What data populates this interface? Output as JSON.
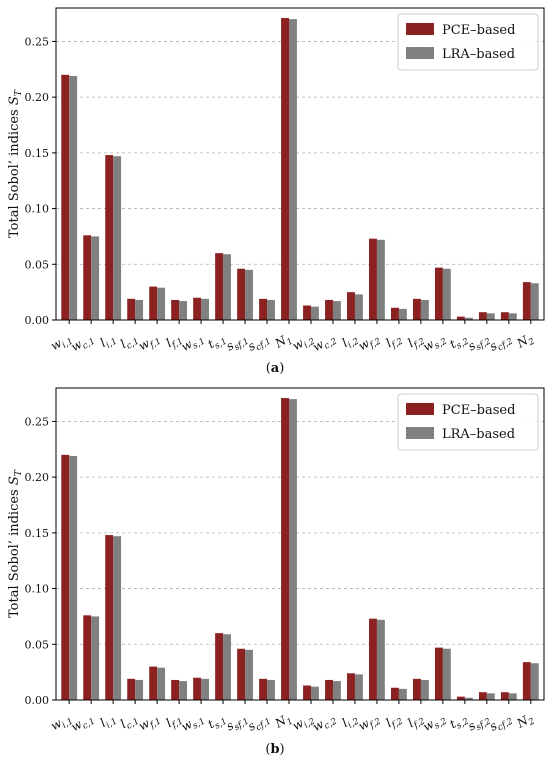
{
  "colors": {
    "pce": "#8b2221",
    "lra": "#808080",
    "grid": "#b0b0b0"
  },
  "chart_data": [
    {
      "type": "bar",
      "caption_letter": "a",
      "ylabel": "Total Sobol’ indices S_T",
      "ylim": [
        0,
        0.28
      ],
      "yticks": [
        "0.00",
        "0.05",
        "0.10",
        "0.15",
        "0.20",
        "0.25"
      ],
      "ytick_values": [
        0,
        0.05,
        0.1,
        0.15,
        0.2,
        0.25
      ],
      "grid": "y-dashed",
      "legend_position": "top-right",
      "categories": [
        "w_{i,1}",
        "w_{c,1}",
        "l_{i,1}",
        "l_{c,1}",
        "w_{f,1}",
        "l_{f,1}",
        "w_{s,1}",
        "t_{s,1}",
        "s_{sf,1}",
        "s_{cf,1}",
        "N_1",
        "w_{i,2}",
        "w_{c,2}",
        "l_{i,2}",
        "w_{f,2}",
        "l_{f,2}",
        "l_{f,2}",
        "w_{s,2}",
        "t_{s,2}",
        "s_{sf,2}",
        "s_{cf,2}",
        "N_2"
      ],
      "series": [
        {
          "name": "PCE–based",
          "values": [
            0.22,
            0.076,
            0.148,
            0.019,
            0.03,
            0.018,
            0.02,
            0.06,
            0.046,
            0.019,
            0.271,
            0.013,
            0.018,
            0.025,
            0.073,
            0.011,
            0.019,
            0.047,
            0.003,
            0.007,
            0.007,
            0.034
          ]
        },
        {
          "name": "LRA–based",
          "values": [
            0.219,
            0.075,
            0.147,
            0.018,
            0.029,
            0.017,
            0.019,
            0.059,
            0.045,
            0.018,
            0.27,
            0.012,
            0.017,
            0.023,
            0.072,
            0.01,
            0.018,
            0.046,
            0.002,
            0.006,
            0.006,
            0.033
          ]
        }
      ]
    },
    {
      "type": "bar",
      "caption_letter": "b",
      "ylabel": "Total Sobol’ indices S_T",
      "ylim": [
        0,
        0.28
      ],
      "yticks": [
        "0.00",
        "0.05",
        "0.10",
        "0.15",
        "0.20",
        "0.25"
      ],
      "ytick_values": [
        0,
        0.05,
        0.1,
        0.15,
        0.2,
        0.25
      ],
      "grid": "y-dashed",
      "legend_position": "top-right",
      "categories": [
        "w_{i,1}",
        "w_{c,1}",
        "l_{i,1}",
        "l_{c,1}",
        "w_{f,1}",
        "l_{f,1}",
        "w_{s,1}",
        "t_{s,1}",
        "s_{sf,1}",
        "s_{cf,1}",
        "N_1",
        "w_{i,2}",
        "w_{c,2}",
        "l_{i,2}",
        "w_{f,2}",
        "l_{f,2}",
        "l_{f,2}",
        "w_{s,2}",
        "t_{s,2}",
        "s_{sf,2}",
        "s_{cf,2}",
        "N_2"
      ],
      "series": [
        {
          "name": "PCE–based",
          "values": [
            0.22,
            0.076,
            0.148,
            0.019,
            0.03,
            0.018,
            0.02,
            0.06,
            0.046,
            0.019,
            0.271,
            0.013,
            0.018,
            0.024,
            0.073,
            0.011,
            0.019,
            0.047,
            0.003,
            0.007,
            0.007,
            0.034
          ]
        },
        {
          "name": "LRA–based",
          "values": [
            0.219,
            0.075,
            0.147,
            0.018,
            0.029,
            0.017,
            0.019,
            0.059,
            0.045,
            0.018,
            0.27,
            0.012,
            0.017,
            0.023,
            0.072,
            0.01,
            0.018,
            0.046,
            0.002,
            0.006,
            0.006,
            0.033
          ]
        }
      ]
    }
  ]
}
